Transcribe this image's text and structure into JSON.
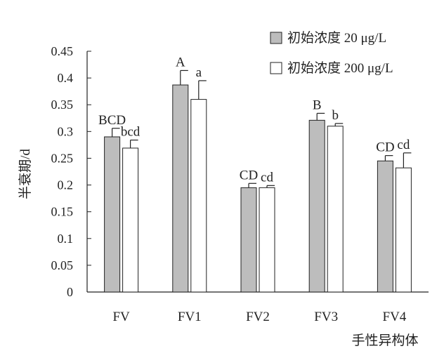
{
  "chart_data": {
    "type": "bar",
    "xlabel": "手性异构体",
    "ylabel": "半衰期/d",
    "ylim": [
      0,
      0.45
    ],
    "yticks": [
      0,
      0.05,
      0.1,
      0.15,
      0.2,
      0.25,
      0.3,
      0.35,
      0.4,
      0.45
    ],
    "ytick_labels": [
      "0",
      "0.05",
      "0.1",
      "0.15",
      "0.2",
      "0.25",
      "0.3",
      "0.35",
      "0.4",
      "0.45"
    ],
    "grid": false,
    "legend_position": "top-right",
    "categories": [
      "FV",
      "FV1",
      "FV2",
      "FV3",
      "FV4"
    ],
    "series": [
      {
        "name": "初始浓度 20 μg/L",
        "color": "#bdbdbd",
        "values": [
          0.29,
          0.387,
          0.195,
          0.321,
          0.245
        ],
        "errors": [
          0.016,
          0.027,
          0.008,
          0.013,
          0.01
        ],
        "labels": [
          "BCD",
          "A",
          "CD",
          "B",
          "CD"
        ]
      },
      {
        "name": "初始浓度 200 μg/L",
        "color": "#ffffff",
        "values": [
          0.269,
          0.36,
          0.195,
          0.31,
          0.232
        ],
        "errors": [
          0.015,
          0.035,
          0.004,
          0.005,
          0.028
        ],
        "labels": [
          "bcd",
          "a",
          "cd",
          "b",
          "cd"
        ]
      }
    ]
  }
}
